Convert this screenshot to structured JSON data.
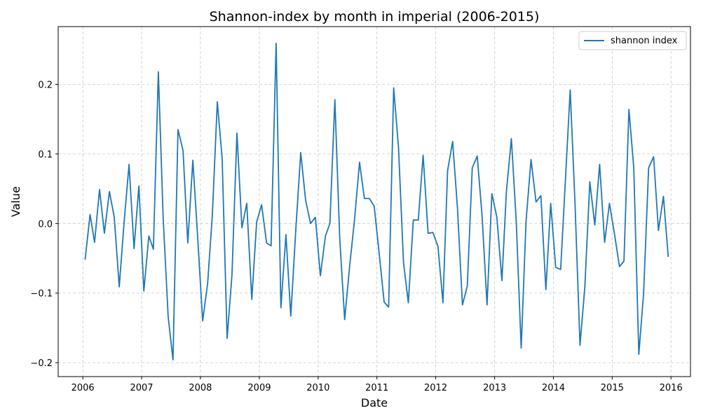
{
  "chart_data": {
    "type": "line",
    "title": "Shannon-index by month in imperial (2006-2015)",
    "xlabel": "Date",
    "ylabel": "Value",
    "xlim": [
      "2005-08-01",
      "2016-05-01"
    ],
    "ylim": [
      -0.22,
      0.283
    ],
    "x_ticks": [
      "2006",
      "2007",
      "2008",
      "2009",
      "2010",
      "2011",
      "2012",
      "2013",
      "2014",
      "2015",
      "2016"
    ],
    "y_ticks": [
      -0.2,
      -0.1,
      0.0,
      0.1,
      0.2
    ],
    "y_tick_labels": [
      "−0.2",
      "−0.1",
      "0.0",
      "0.1",
      "0.2"
    ],
    "grid": true,
    "legend_position": "top-right",
    "series": [
      {
        "name": "shannon index",
        "color": "#1f77b4",
        "start": "2006-01",
        "frequency": "monthly",
        "values": [
          -0.052,
          0.013,
          -0.027,
          0.049,
          -0.014,
          0.046,
          0.009,
          -0.091,
          0.004,
          0.085,
          -0.036,
          0.054,
          -0.097,
          -0.018,
          -0.037,
          0.218,
          0.007,
          -0.134,
          -0.196,
          0.135,
          0.105,
          -0.028,
          0.091,
          -0.02,
          -0.14,
          -0.086,
          0.012,
          0.175,
          0.094,
          -0.165,
          -0.074,
          0.13,
          -0.006,
          0.029,
          -0.109,
          0.002,
          0.027,
          -0.028,
          -0.032,
          0.259,
          -0.121,
          -0.016,
          -0.133,
          -0.01,
          0.102,
          0.034,
          0.0,
          0.009,
          -0.075,
          -0.018,
          0.0,
          0.178,
          -0.021,
          -0.138,
          -0.063,
          0.005,
          0.088,
          0.036,
          0.036,
          0.025,
          -0.043,
          -0.113,
          -0.12,
          0.195,
          0.109,
          -0.056,
          -0.114,
          0.005,
          0.005,
          0.098,
          -0.014,
          -0.013,
          -0.033,
          -0.114,
          0.076,
          0.118,
          0.022,
          -0.117,
          -0.09,
          0.08,
          0.097,
          0.011,
          -0.117,
          0.043,
          0.009,
          -0.082,
          0.046,
          0.122,
          0.004,
          -0.179,
          0.003,
          0.092,
          0.031,
          0.04,
          -0.095,
          0.029,
          -0.063,
          -0.066,
          0.057,
          0.192,
          0.028,
          -0.175,
          -0.091,
          0.06,
          -0.002,
          0.085,
          -0.027,
          0.029,
          -0.015,
          -0.062,
          -0.054,
          0.164,
          0.08,
          -0.188,
          -0.101,
          0.08,
          0.096,
          -0.01,
          0.039,
          -0.048
        ]
      }
    ]
  }
}
